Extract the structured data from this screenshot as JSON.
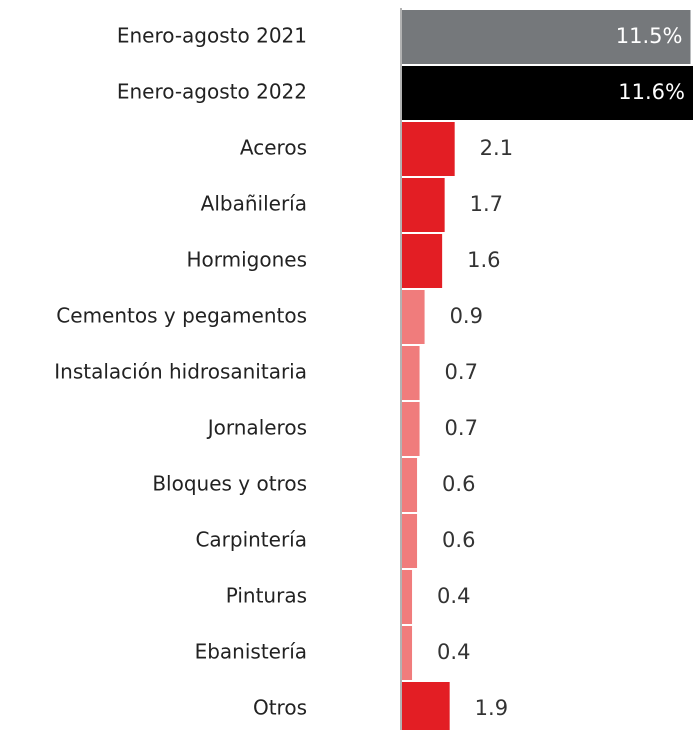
{
  "chart_data": {
    "type": "bar",
    "orientation": "horizontal",
    "categories": [
      "Enero-agosto 2021",
      "Enero-agosto 2022",
      "Aceros",
      "Albañilería",
      "Hormigones",
      "Cementos y pegamentos",
      "Instalación hidrosanitaria",
      "Jornaleros",
      "Bloques y otros",
      "Carpintería",
      "Pinturas",
      "Ebanistería",
      "Otros"
    ],
    "values": [
      11.5,
      11.6,
      2.1,
      1.7,
      1.6,
      0.9,
      0.7,
      0.7,
      0.6,
      0.6,
      0.4,
      0.4,
      1.9
    ],
    "value_labels": [
      "11.5%",
      "11.6%",
      "2.1",
      "1.7",
      "1.6",
      "0.9",
      "0.7",
      "0.7",
      "0.6",
      "0.6",
      "0.4",
      "0.4",
      "1.9"
    ],
    "colors": [
      "#75787b",
      "#000000",
      "#e31e24",
      "#e31e24",
      "#e31e24",
      "#f07c7c",
      "#f07c7c",
      "#f07c7c",
      "#f07c7c",
      "#f07c7c",
      "#f07c7c",
      "#f07c7c",
      "#e31e24"
    ]
  }
}
